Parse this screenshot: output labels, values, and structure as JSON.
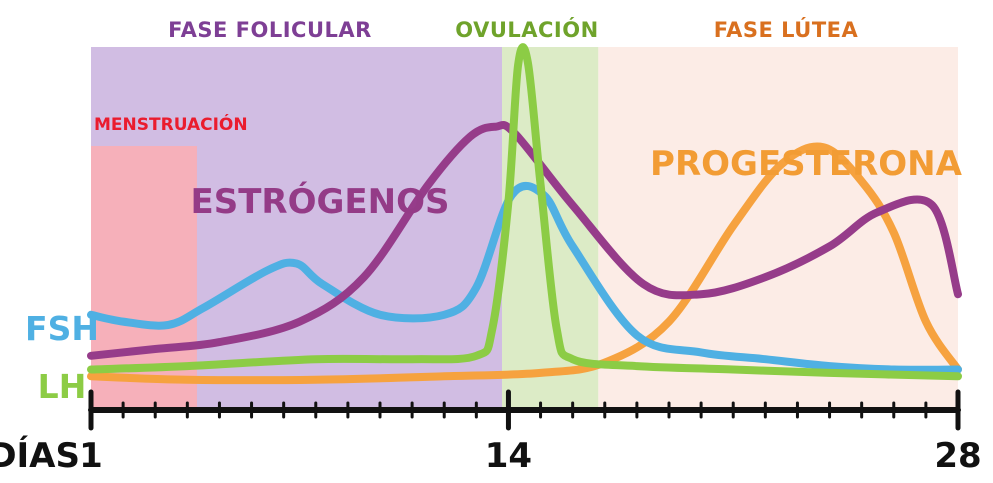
{
  "chart_data": {
    "type": "line",
    "x_axis": {
      "label": "DÍAS",
      "range": [
        1,
        28
      ],
      "ticks": [
        1,
        14,
        28
      ]
    },
    "phases": [
      {
        "name": "FASE FOLICULAR",
        "start": 1,
        "end": 13.8,
        "color": "#d1bde3",
        "label_color": "#7e3f95"
      },
      {
        "name": "OVULACIÓN",
        "start": 13.8,
        "end": 16.8,
        "color": "#dcebc6",
        "label_color": "#6fa32b"
      },
      {
        "name": "FASE LÚTEA",
        "start": 16.8,
        "end": 28,
        "color": "#fcece6",
        "label_color": "#d9701f"
      }
    ],
    "menstruation": {
      "name": "MENSTRUACIÓN",
      "start": 1,
      "end": 4.3,
      "color": "#f9aeb5",
      "label_color": "#ea1c2e"
    },
    "series": [
      {
        "name": "FSH",
        "color": "#4fb0e3",
        "x": [
          1,
          2,
          3.4,
          4.5,
          6.5,
          7.4,
          8.2,
          10,
          12,
          13,
          14.1,
          15.1,
          16,
          18,
          20,
          22,
          24,
          26,
          28
        ],
        "y": [
          0.22,
          0.2,
          0.19,
          0.24,
          0.35,
          0.37,
          0.31,
          0.22,
          0.22,
          0.3,
          0.57,
          0.57,
          0.42,
          0.16,
          0.11,
          0.09,
          0.07,
          0.06,
          0.06
        ]
      },
      {
        "name": "LH",
        "color": "#8ccc45",
        "x": [
          1,
          4,
          8,
          11,
          13,
          13.5,
          14,
          14.3,
          14.6,
          15,
          15.5,
          16,
          18,
          21,
          24,
          28
        ],
        "y": [
          0.06,
          0.07,
          0.09,
          0.09,
          0.1,
          0.18,
          0.55,
          0.95,
          0.96,
          0.6,
          0.18,
          0.09,
          0.07,
          0.06,
          0.05,
          0.04
        ]
      },
      {
        "name": "ESTRÓGENOS",
        "label_color": "#943b87",
        "color": "#963c8a",
        "x": [
          1,
          3,
          5,
          7.5,
          9.5,
          11.5,
          12.8,
          13.6,
          14.2,
          16,
          18.2,
          20,
          22,
          24,
          25.5,
          27.2,
          28
        ],
        "y": [
          0.1,
          0.12,
          0.14,
          0.2,
          0.33,
          0.6,
          0.74,
          0.77,
          0.75,
          0.54,
          0.31,
          0.28,
          0.33,
          0.42,
          0.52,
          0.54,
          0.28
        ]
      },
      {
        "name": "PROGESTERONA",
        "label_color": "#f29c34",
        "color": "#f6a23f",
        "x": [
          1,
          4,
          8,
          12,
          15,
          17,
          19,
          21,
          22.5,
          23.8,
          25,
          26,
          27,
          28
        ],
        "y": [
          0.04,
          0.03,
          0.03,
          0.04,
          0.05,
          0.08,
          0.2,
          0.48,
          0.66,
          0.71,
          0.61,
          0.46,
          0.2,
          0.06
        ]
      }
    ]
  }
}
